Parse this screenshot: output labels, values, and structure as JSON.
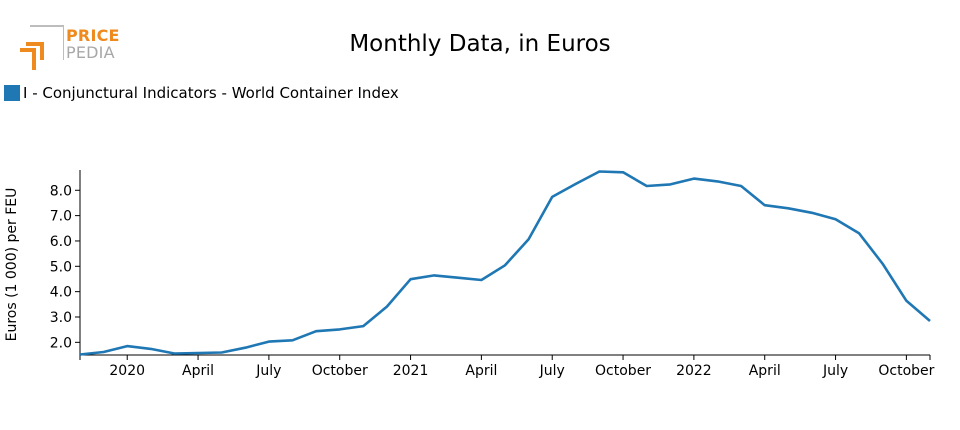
{
  "logo": {
    "word_1": "PRICE",
    "word_2": "PEDIA"
  },
  "chart_data": {
    "type": "line",
    "title": "Monthly Data, in Euros",
    "ylabel": "Euros (1 000) per FEU",
    "xlabel": "",
    "ylim": [
      1.5,
      8.8
    ],
    "yticks": [
      2.0,
      3.0,
      4.0,
      5.0,
      6.0,
      7.0,
      8.0
    ],
    "x_tick_labels": [
      {
        "label": "2020",
        "month": 1
      },
      {
        "label": "April",
        "month": 4
      },
      {
        "label": "July",
        "month": 7
      },
      {
        "label": "October",
        "month": 10
      },
      {
        "label": "2021",
        "month": 13
      },
      {
        "label": "April",
        "month": 16
      },
      {
        "label": "July",
        "month": 19
      },
      {
        "label": "October",
        "month": 22
      },
      {
        "label": "2022",
        "month": 25
      },
      {
        "label": "April",
        "month": 28
      },
      {
        "label": "July",
        "month": 31
      },
      {
        "label": "October",
        "month": 34
      }
    ],
    "legend": "top-left",
    "grid": false,
    "series": [
      {
        "name": "I - Conjunctural Indicators - World Container Index",
        "color": "#1f77b4",
        "x": [
          "2019-11",
          "2019-12",
          "2020-01",
          "2020-02",
          "2020-03",
          "2020-04",
          "2020-05",
          "2020-06",
          "2020-07",
          "2020-08",
          "2020-09",
          "2020-10",
          "2020-11",
          "2020-12",
          "2021-01",
          "2021-02",
          "2021-03",
          "2021-04",
          "2021-05",
          "2021-06",
          "2021-07",
          "2021-08",
          "2021-09",
          "2021-10",
          "2021-11",
          "2021-12",
          "2022-01",
          "2022-02",
          "2022-03",
          "2022-04",
          "2022-05",
          "2022-06",
          "2022-07",
          "2022-08",
          "2022-09",
          "2022-10",
          "2022-11"
        ],
        "values": [
          1.52,
          1.62,
          1.85,
          1.74,
          1.56,
          1.58,
          1.6,
          1.79,
          2.03,
          2.08,
          2.44,
          2.51,
          2.64,
          3.41,
          4.49,
          4.64,
          4.55,
          4.46,
          5.04,
          6.07,
          7.74,
          8.25,
          8.74,
          8.71,
          8.17,
          8.23,
          8.46,
          8.35,
          8.17,
          7.41,
          7.29,
          7.11,
          6.86,
          6.3,
          5.09,
          3.64,
          2.84
        ]
      }
    ]
  }
}
